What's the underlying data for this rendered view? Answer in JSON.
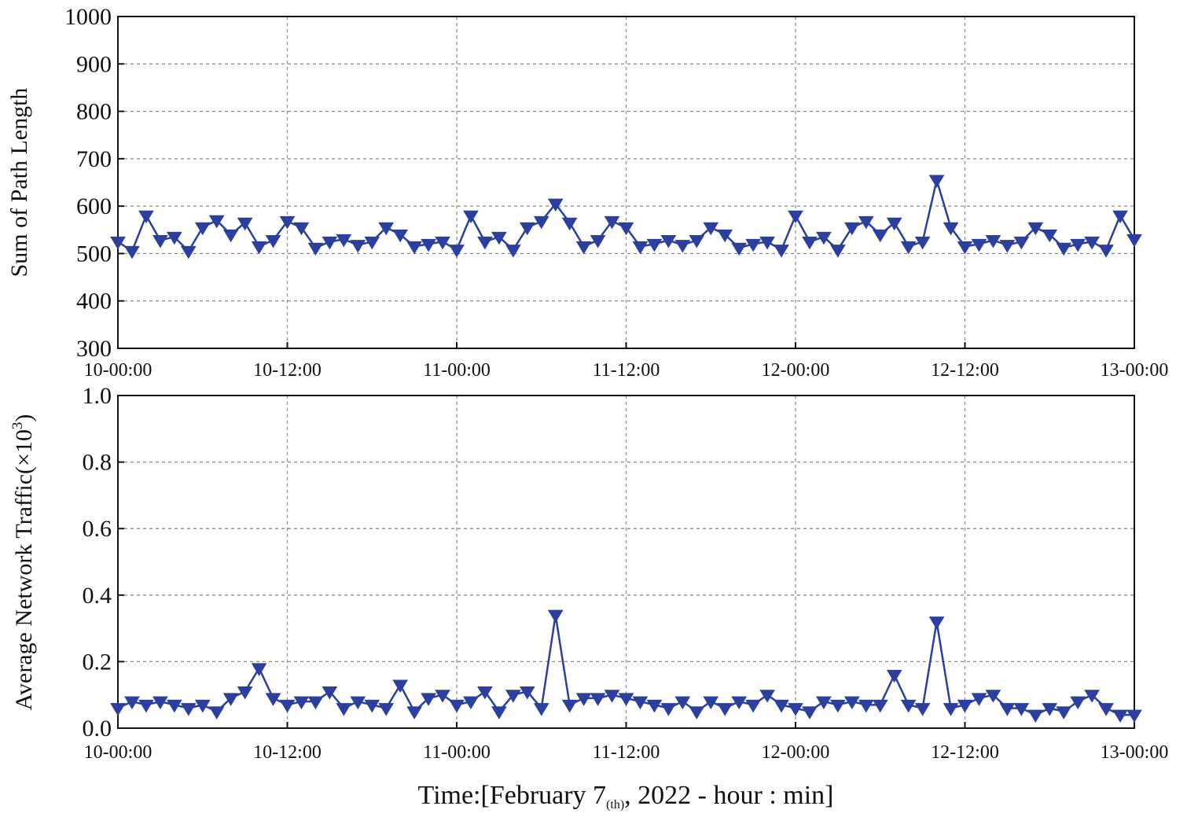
{
  "xlabel": {
    "main": "Time:[February 7",
    "sub": "(th)",
    "rest": ", 2022 - hour : min]"
  },
  "top_ylabel": "Sum of Path Length",
  "bottom_ylabel": {
    "main": "Average Network Traffic(×10",
    "sup": "3",
    "close": ")"
  },
  "colors": {
    "series": "#2b3f9e",
    "grid": "#8c8c8c",
    "axis": "#111111"
  },
  "chart_data": [
    {
      "type": "line",
      "marker": "triangle-down",
      "xlabel": "",
      "ylabel": "Sum of Path Length",
      "ylim": [
        300,
        1000
      ],
      "yticks": [
        300,
        400,
        500,
        600,
        700,
        800,
        900,
        1000
      ],
      "xticks": [
        "10-00:00",
        "10-12:00",
        "11-00:00",
        "11-12:00",
        "12-00:00",
        "12-12:00",
        "13-00:00"
      ],
      "grid": true,
      "x_range_hours": [
        0,
        72
      ],
      "x_hours": [
        0,
        1,
        2,
        3,
        4,
        5,
        6,
        7,
        8,
        9,
        10,
        11,
        12,
        13,
        14,
        15,
        16,
        17,
        18,
        19,
        20,
        21,
        22,
        23,
        24,
        25,
        26,
        27,
        28,
        29,
        30,
        31,
        32,
        33,
        34,
        35,
        36,
        37,
        38,
        39,
        40,
        41,
        42,
        43,
        44,
        45,
        46,
        47,
        48,
        49,
        50,
        51,
        52,
        53,
        54,
        55,
        56,
        57,
        58,
        59,
        60,
        61,
        62,
        63,
        64,
        65,
        66,
        67,
        68,
        69,
        70,
        71,
        72
      ],
      "values": [
        525,
        505,
        580,
        528,
        535,
        505,
        555,
        570,
        540,
        565,
        515,
        528,
        568,
        555,
        512,
        525,
        530,
        518,
        525,
        555,
        540,
        515,
        520,
        525,
        508,
        580,
        525,
        535,
        508,
        555,
        568,
        605,
        565,
        515,
        528,
        568,
        555,
        515,
        520,
        528,
        518,
        528,
        555,
        540,
        512,
        520,
        525,
        508,
        580,
        525,
        535,
        508,
        555,
        568,
        540,
        565,
        515,
        525,
        655,
        555,
        515,
        520,
        528,
        518,
        525,
        555,
        540,
        512,
        520,
        525,
        508,
        580,
        530
      ]
    },
    {
      "type": "line",
      "marker": "triangle-down",
      "xlabel": "",
      "ylabel": "Average Network Traffic(×10³)",
      "ylim": [
        0.0,
        1.0
      ],
      "yticks": [
        "0.0",
        "0.2",
        "0.4",
        "0.6",
        "0.8",
        "1.0"
      ],
      "xticks": [
        "10-00:00",
        "10-12:00",
        "11-00:00",
        "11-12:00",
        "12-00:00",
        "12-12:00",
        "13-00:00"
      ],
      "grid": true,
      "x_range_hours": [
        0,
        72
      ],
      "x_hours": [
        0,
        1,
        2,
        3,
        4,
        5,
        6,
        7,
        8,
        9,
        10,
        11,
        12,
        13,
        14,
        15,
        16,
        17,
        18,
        19,
        20,
        21,
        22,
        23,
        24,
        25,
        26,
        27,
        28,
        29,
        30,
        31,
        32,
        33,
        34,
        35,
        36,
        37,
        38,
        39,
        40,
        41,
        42,
        43,
        44,
        45,
        46,
        47,
        48,
        49,
        50,
        51,
        52,
        53,
        54,
        55,
        56,
        57,
        58,
        59,
        60,
        61,
        62,
        63,
        64,
        65,
        66,
        67,
        68,
        69,
        70,
        71,
        72
      ],
      "values": [
        0.06,
        0.08,
        0.07,
        0.08,
        0.07,
        0.06,
        0.07,
        0.05,
        0.09,
        0.11,
        0.18,
        0.09,
        0.07,
        0.08,
        0.08,
        0.11,
        0.06,
        0.08,
        0.07,
        0.06,
        0.13,
        0.05,
        0.09,
        0.1,
        0.07,
        0.08,
        0.11,
        0.05,
        0.1,
        0.11,
        0.06,
        0.34,
        0.07,
        0.09,
        0.09,
        0.1,
        0.09,
        0.08,
        0.07,
        0.06,
        0.08,
        0.05,
        0.08,
        0.06,
        0.08,
        0.07,
        0.1,
        0.07,
        0.06,
        0.05,
        0.08,
        0.07,
        0.08,
        0.07,
        0.07,
        0.16,
        0.07,
        0.06,
        0.32,
        0.06,
        0.07,
        0.09,
        0.1,
        0.06,
        0.06,
        0.04,
        0.06,
        0.05,
        0.08,
        0.1,
        0.06,
        0.04,
        0.04
      ]
    }
  ]
}
